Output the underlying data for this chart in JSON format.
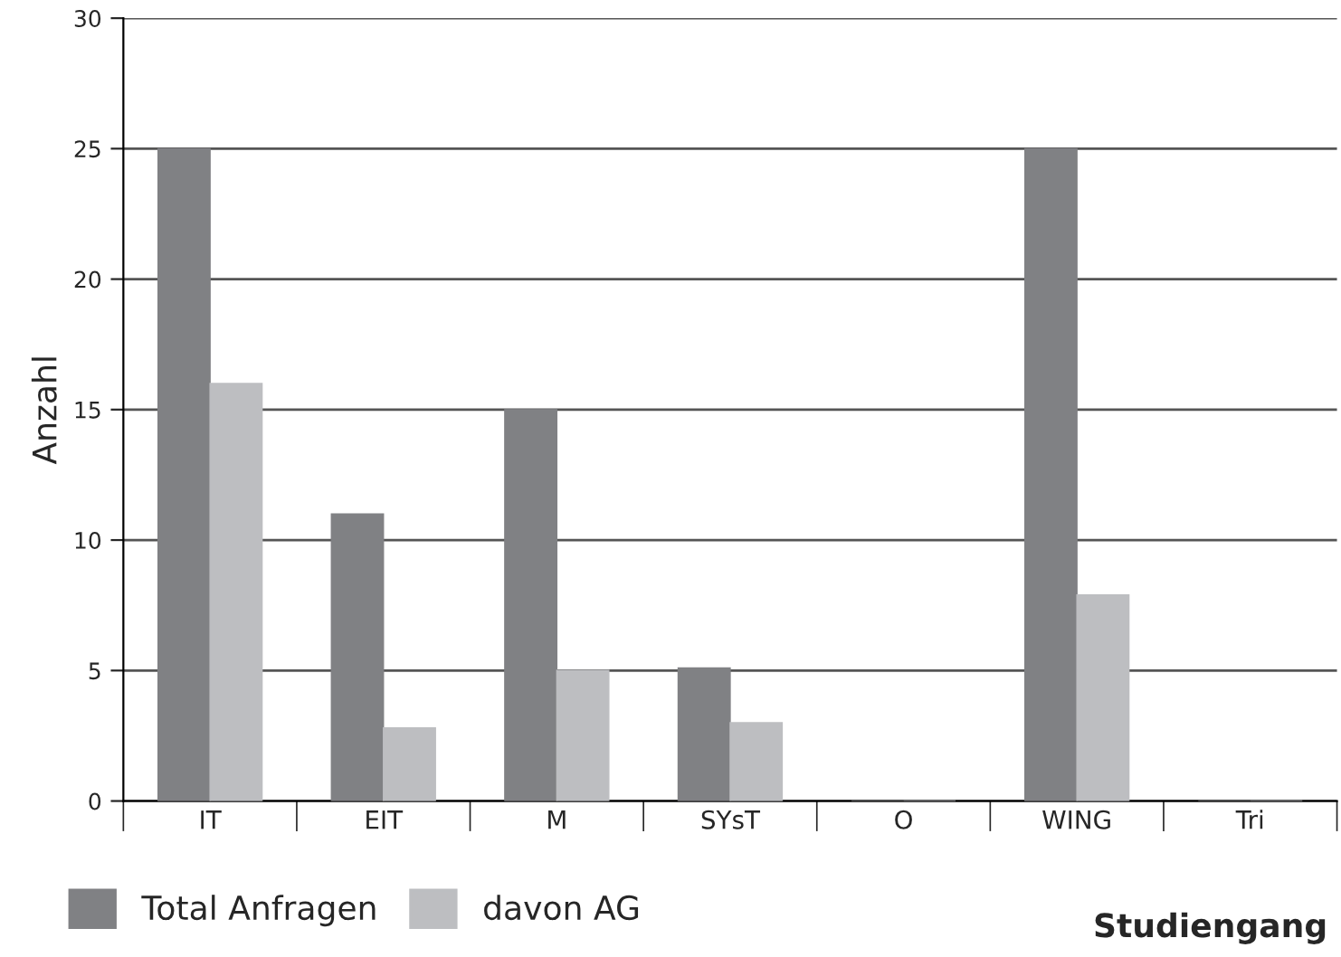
{
  "chart_data": {
    "type": "bar",
    "xlabel": "Studiengang",
    "ylabel": "Anzahl",
    "categories": [
      "IT",
      "EIT",
      "M",
      "SYsT",
      "O",
      "WING",
      "Tri"
    ],
    "series": [
      {
        "name": "Total Anfragen",
        "color": "#808184",
        "values": [
          25,
          11,
          15,
          5.1,
          0,
          25,
          0
        ]
      },
      {
        "name": "davon AG",
        "color": "#bdbec1",
        "values": [
          16,
          2.8,
          5,
          3,
          0,
          7.9,
          0
        ]
      }
    ],
    "ylim": [
      0,
      30
    ],
    "yticks": [
      0,
      5,
      10,
      15,
      20,
      25,
      30
    ],
    "grid": "y",
    "legend": "bottom left"
  }
}
